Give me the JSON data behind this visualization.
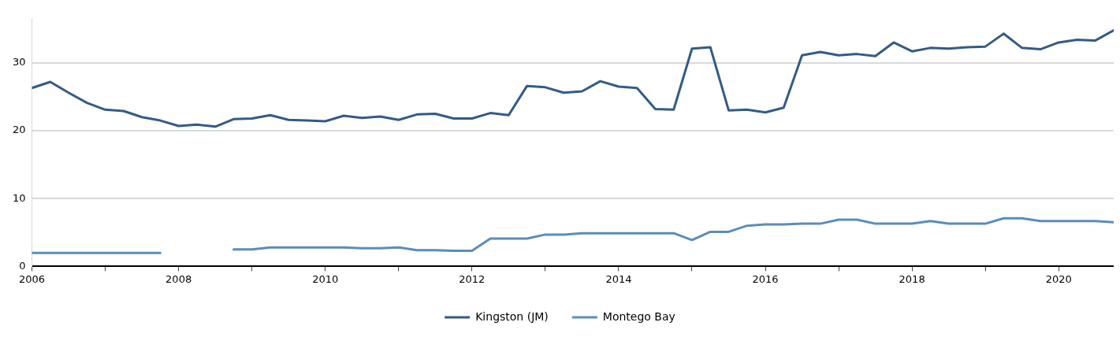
{
  "chart_data": {
    "type": "line",
    "x": [
      2006,
      2006.25,
      2006.5,
      2006.75,
      2007,
      2007.25,
      2007.5,
      2007.75,
      2008,
      2008.25,
      2008.5,
      2008.75,
      2009,
      2009.25,
      2009.5,
      2009.75,
      2010,
      2010.25,
      2010.5,
      2010.75,
      2011,
      2011.25,
      2011.5,
      2011.75,
      2012,
      2012.25,
      2012.5,
      2012.75,
      2013,
      2013.25,
      2013.5,
      2013.75,
      2014,
      2014.25,
      2014.5,
      2014.75,
      2015,
      2015.25,
      2015.5,
      2015.75,
      2016,
      2016.25,
      2016.5,
      2016.75,
      2017,
      2017.25,
      2017.5,
      2017.75,
      2018,
      2018.25,
      2018.5,
      2018.75,
      2019,
      2019.25,
      2019.5,
      2019.75,
      2020,
      2020.25,
      2020.5,
      2020.75
    ],
    "series": [
      {
        "name": "Kingston (JM)",
        "color": "#335b85",
        "values": [
          26.3,
          27.2,
          25.6,
          24.1,
          23.1,
          22.9,
          22.0,
          21.5,
          20.7,
          20.9,
          20.6,
          21.7,
          21.8,
          22.3,
          21.6,
          21.5,
          21.4,
          22.2,
          21.9,
          22.1,
          21.6,
          22.4,
          22.5,
          21.8,
          21.8,
          22.6,
          22.3,
          26.6,
          26.4,
          25.6,
          25.8,
          27.3,
          26.5,
          26.3,
          23.2,
          23.1,
          32.1,
          32.3,
          23.0,
          23.1,
          22.7,
          23.4,
          31.1,
          31.6,
          31.1,
          31.3,
          31.0,
          33.0,
          31.7,
          32.2,
          32.1,
          32.3,
          32.4,
          34.3,
          32.2,
          32.0,
          33.0,
          33.4,
          33.3,
          34.8
        ]
      },
      {
        "name": "Montego Bay",
        "color": "#5b8db8",
        "values": [
          2.0,
          2.0,
          2.0,
          2.0,
          2.0,
          2.0,
          2.0,
          2.0,
          null,
          null,
          null,
          2.5,
          2.5,
          2.8,
          2.8,
          2.8,
          2.8,
          2.8,
          2.7,
          2.7,
          2.8,
          2.4,
          2.4,
          2.3,
          2.3,
          4.1,
          4.1,
          4.1,
          4.7,
          4.7,
          4.9,
          4.9,
          4.9,
          4.9,
          4.9,
          4.9,
          3.9,
          5.1,
          5.1,
          6.0,
          6.2,
          6.2,
          6.3,
          6.3,
          6.9,
          6.9,
          6.3,
          6.3,
          6.3,
          6.7,
          6.3,
          6.3,
          6.3,
          7.1,
          7.1,
          6.7,
          6.7,
          6.7,
          6.7,
          6.5
        ]
      }
    ],
    "xlim": [
      2006,
      2020.75
    ],
    "xticks": [
      2006,
      {
        "value": 2007,
        "label": null
      },
      2008,
      {
        "value": 2009,
        "label": null
      },
      2010,
      {
        "value": 2011,
        "label": null
      },
      2012,
      {
        "value": 2013,
        "label": null
      },
      2014,
      {
        "value": 2015,
        "label": null
      },
      2016,
      {
        "value": 2017,
        "label": null
      },
      2018,
      {
        "value": 2019,
        "label": null
      },
      2020
    ],
    "ylim": [
      0,
      36.5
    ],
    "yticks": [
      0,
      10,
      20,
      30
    ],
    "grid": "y",
    "legend": "bottom"
  }
}
